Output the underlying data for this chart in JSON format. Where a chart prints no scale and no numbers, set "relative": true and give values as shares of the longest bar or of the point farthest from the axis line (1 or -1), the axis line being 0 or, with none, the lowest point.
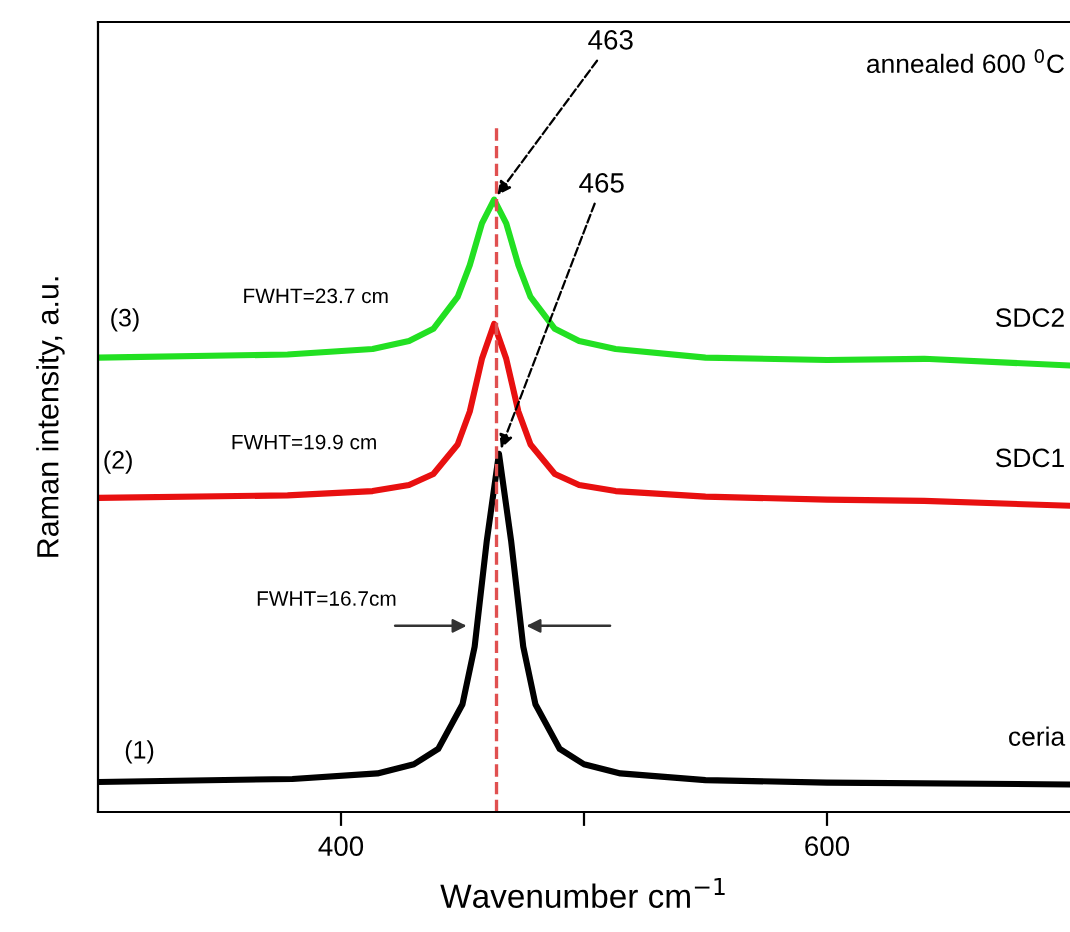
{
  "chart_data": {
    "type": "line",
    "relative": true,
    "xlabel": "Wavenumber cm$^{−1}$",
    "ylabel": "Raman intensity, a.u.",
    "xlim": [
      300,
      700
    ],
    "xticks": [
      400,
      {
        "value": 500,
        "label": null
      },
      600
    ],
    "grid": false,
    "legend": false,
    "marker": "none",
    "line_style": "solid",
    "series": [
      {
        "name": "ceria",
        "color": "#000000",
        "x": [
          300,
          380,
          415,
          430,
          440,
          450,
          455,
          460,
          465,
          470,
          475,
          480,
          490,
          500,
          515,
          550,
          600,
          700
        ],
        "values": [
          0.049,
          0.054,
          0.063,
          0.078,
          0.103,
          0.176,
          0.27,
          0.443,
          0.585,
          0.443,
          0.27,
          0.176,
          0.103,
          0.078,
          0.063,
          0.052,
          0.048,
          0.045
        ]
      },
      {
        "name": "SDC1",
        "color": "#e81010",
        "x": [
          300,
          378,
          413,
          428,
          438,
          448,
          453,
          458,
          463,
          468,
          473,
          478,
          488,
          498,
          513,
          550,
          600,
          640,
          700
        ],
        "values": [
          0.513,
          0.517,
          0.524,
          0.534,
          0.552,
          0.6,
          0.654,
          0.74,
          0.797,
          0.74,
          0.654,
          0.6,
          0.552,
          0.534,
          0.524,
          0.515,
          0.51,
          0.508,
          0.5
        ]
      },
      {
        "name": "SDC2",
        "color": "#22e022",
        "x": [
          300,
          378,
          413,
          428,
          438,
          448,
          453,
          458,
          463,
          468,
          473,
          478,
          488,
          498,
          513,
          550,
          600,
          640,
          700
        ],
        "values": [
          0.742,
          0.747,
          0.756,
          0.769,
          0.789,
          0.841,
          0.893,
          0.961,
          1.0,
          0.961,
          0.893,
          0.841,
          0.789,
          0.769,
          0.756,
          0.742,
          0.738,
          0.74,
          0.729
        ]
      }
    ],
    "ref_lines": [
      {
        "axis": "x",
        "value": 464,
        "label": null,
        "color": "#e05050",
        "line_style": "dashed"
      }
    ],
    "annotations": [
      "annealed 600 $^{0}$C",
      "(1)",
      "(2)",
      "(3)",
      "FWHT=16.7cm",
      "FWHT=19.9 cm",
      "FWHT=23.7 cm",
      {
        "text": "463",
        "x": 463,
        "y": 1.0
      },
      {
        "text": "465",
        "x": 465,
        "y": 0.585
      }
    ]
  }
}
